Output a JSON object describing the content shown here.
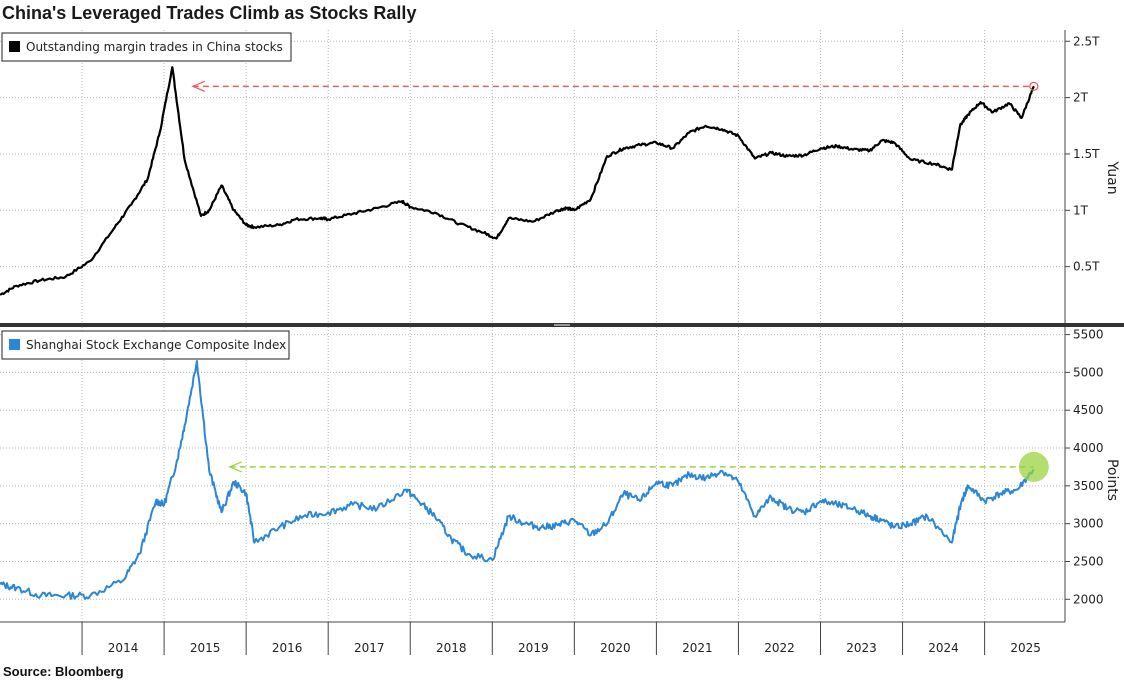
{
  "title": "China's Leveraged Trades Climb as Stocks Rally",
  "source": "Source:  Bloomberg",
  "colors": {
    "margin": "#000000",
    "index": "#2b86d6",
    "margin_ref": "#e8605d",
    "index_ref": "#9bd340",
    "grid": "#b9b9b9",
    "divider": "#333333"
  },
  "chart_data": [
    {
      "type": "line",
      "title": "Outstanding margin trades in China stocks",
      "ylabel": "Yuan",
      "ylim": [
        0,
        2.6
      ],
      "yticks": [
        0.5,
        1,
        1.5,
        2,
        2.5
      ],
      "ytick_labels": [
        "0.5T",
        "1T",
        "1.5T",
        "2T",
        "2.5T"
      ],
      "reference_level": 2.1,
      "series": [
        {
          "name": "Outstanding margin trades in China stocks",
          "x": [
            2013.0,
            2013.2,
            2013.5,
            2013.8,
            2014.1,
            2014.4,
            2014.6,
            2014.8,
            2014.95,
            2015.1,
            2015.25,
            2015.45,
            2015.55,
            2015.7,
            2015.85,
            2016.0,
            2016.1,
            2016.4,
            2016.6,
            2016.9,
            2017.0,
            2017.3,
            2017.6,
            2017.9,
            2018.0,
            2018.3,
            2018.6,
            2018.9,
            2019.05,
            2019.2,
            2019.5,
            2019.8,
            2019.9,
            2020.0,
            2020.2,
            2020.4,
            2020.6,
            2020.8,
            2021.0,
            2021.2,
            2021.4,
            2021.6,
            2021.8,
            2022.0,
            2022.2,
            2022.4,
            2022.6,
            2022.8,
            2023.0,
            2023.2,
            2023.4,
            2023.6,
            2023.75,
            2023.9,
            2024.1,
            2024.4,
            2024.6,
            2024.7,
            2024.8,
            2024.95,
            2025.1,
            2025.3,
            2025.45,
            2025.6
          ],
          "values": [
            0.25,
            0.33,
            0.38,
            0.41,
            0.55,
            0.85,
            1.05,
            1.28,
            1.7,
            2.27,
            1.45,
            0.95,
            1.0,
            1.22,
            1.0,
            0.87,
            0.85,
            0.87,
            0.92,
            0.93,
            0.92,
            0.97,
            1.02,
            1.08,
            1.03,
            0.98,
            0.88,
            0.8,
            0.75,
            0.93,
            0.9,
            1.0,
            1.02,
            1.0,
            1.1,
            1.48,
            1.55,
            1.58,
            1.6,
            1.55,
            1.69,
            1.75,
            1.72,
            1.66,
            1.46,
            1.51,
            1.48,
            1.49,
            1.55,
            1.57,
            1.54,
            1.53,
            1.62,
            1.6,
            1.45,
            1.41,
            1.36,
            1.75,
            1.85,
            1.96,
            1.87,
            1.95,
            1.82,
            2.1
          ]
        }
      ]
    },
    {
      "type": "line",
      "title": "Shanghai Stock Exchange Composite Index",
      "ylabel": "Points",
      "ylim": [
        1700,
        5600
      ],
      "yticks": [
        2000,
        2500,
        3000,
        3500,
        4000,
        4500,
        5000,
        5500
      ],
      "ytick_labels": [
        "2000",
        "2500",
        "3000",
        "3500",
        "4000",
        "4500",
        "5000",
        "5500"
      ],
      "reference_level": 3750,
      "series": [
        {
          "name": "Shanghai Stock Exchange Composite Index",
          "x": [
            2013.0,
            2013.2,
            2013.5,
            2013.8,
            2014.1,
            2014.5,
            2014.7,
            2014.9,
            2015.0,
            2015.15,
            2015.25,
            2015.4,
            2015.55,
            2015.7,
            2015.85,
            2016.0,
            2016.1,
            2016.4,
            2016.7,
            2017.0,
            2017.3,
            2017.6,
            2017.95,
            2018.1,
            2018.3,
            2018.5,
            2018.7,
            2019.0,
            2019.2,
            2019.4,
            2019.6,
            2019.8,
            2020.0,
            2020.2,
            2020.4,
            2020.6,
            2020.8,
            2021.0,
            2021.2,
            2021.4,
            2021.6,
            2021.8,
            2022.0,
            2022.2,
            2022.4,
            2022.6,
            2022.8,
            2023.0,
            2023.2,
            2023.4,
            2023.6,
            2023.75,
            2023.9,
            2024.1,
            2024.3,
            2024.6,
            2024.72,
            2024.8,
            2025.0,
            2025.2,
            2025.4,
            2025.6
          ],
          "values": [
            2200,
            2150,
            2050,
            2050,
            2050,
            2250,
            2600,
            3300,
            3250,
            3800,
            4300,
            5150,
            3700,
            3150,
            3550,
            3400,
            2750,
            2950,
            3100,
            3150,
            3250,
            3200,
            3450,
            3300,
            3100,
            2800,
            2600,
            2520,
            3100,
            3000,
            2950,
            2980,
            3050,
            2850,
            3000,
            3400,
            3300,
            3550,
            3500,
            3650,
            3600,
            3700,
            3550,
            3100,
            3350,
            3200,
            3150,
            3300,
            3250,
            3200,
            3100,
            3050,
            2950,
            3000,
            3100,
            2750,
            3300,
            3500,
            3300,
            3400,
            3450,
            3720
          ]
        }
      ]
    }
  ],
  "x_axis": {
    "range": [
      2013.0,
      2025.98
    ],
    "year_labels": [
      "2014",
      "2015",
      "2016",
      "2017",
      "2018",
      "2019",
      "2020",
      "2021",
      "2022",
      "2023",
      "2024",
      "2025"
    ]
  }
}
